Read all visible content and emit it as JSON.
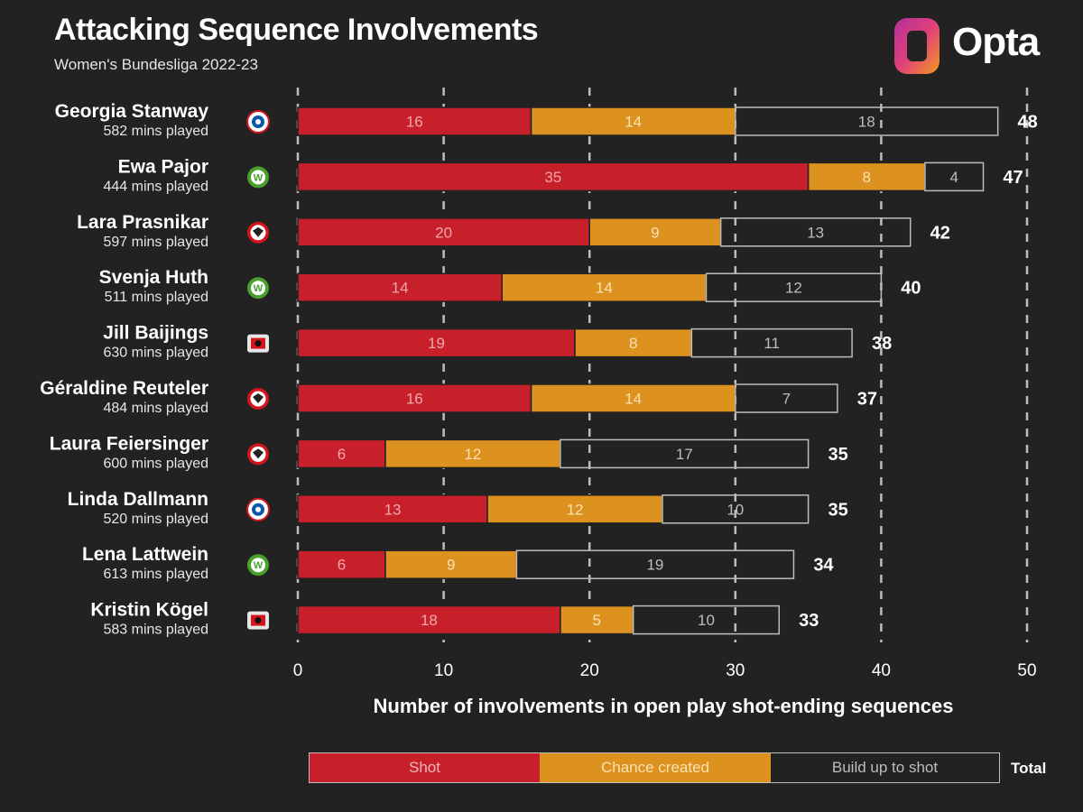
{
  "header": {
    "title": "Attacking Sequence Involvements",
    "subtitle": "Women's Bundesliga 2022-23",
    "brand": "Opta"
  },
  "legend": {
    "shot": "Shot",
    "chance": "Chance created",
    "build": "Build up to shot",
    "total": "Total"
  },
  "colors": {
    "shot": "#c7202b",
    "chance": "#dd911f",
    "build_border": "#bdbdbd",
    "background": "#222222"
  },
  "chart_data": {
    "type": "bar",
    "orientation": "horizontal",
    "stacked": true,
    "title": "Attacking Sequence Involvements",
    "subtitle": "Women's Bundesliga 2022-23",
    "xlabel": "Number of involvements in open play shot-ending sequences",
    "ylabel": "",
    "xlim": [
      0,
      50
    ],
    "xticks": [
      0,
      10,
      20,
      30,
      40,
      50
    ],
    "grid": "vertical dashed",
    "series_names": [
      "Shot",
      "Chance created",
      "Build up to shot"
    ],
    "players": [
      {
        "name": "Georgia Stanway",
        "mins": "582 mins played",
        "club": "Bayern Munich",
        "shot": 16,
        "chance": 14,
        "build": 18,
        "total": 48
      },
      {
        "name": "Ewa Pajor",
        "mins": "444 mins played",
        "club": "Wolfsburg",
        "shot": 35,
        "chance": 8,
        "build": 4,
        "total": 47
      },
      {
        "name": "Lara Prasnikar",
        "mins": "597 mins played",
        "club": "Eintracht Frankfurt",
        "shot": 20,
        "chance": 9,
        "build": 13,
        "total": 42
      },
      {
        "name": "Svenja Huth",
        "mins": "511 mins played",
        "club": "Wolfsburg",
        "shot": 14,
        "chance": 14,
        "build": 12,
        "total": 40
      },
      {
        "name": "Jill Baijings",
        "mins": "630 mins played",
        "club": "Bayer Leverkusen",
        "shot": 19,
        "chance": 8,
        "build": 11,
        "total": 38
      },
      {
        "name": "Géraldine Reuteler",
        "mins": "484 mins played",
        "club": "Eintracht Frankfurt",
        "shot": 16,
        "chance": 14,
        "build": 7,
        "total": 37
      },
      {
        "name": "Laura Feiersinger",
        "mins": "600 mins played",
        "club": "Eintracht Frankfurt",
        "shot": 6,
        "chance": 12,
        "build": 17,
        "total": 35
      },
      {
        "name": "Linda Dallmann",
        "mins": "520 mins played",
        "club": "Bayern Munich",
        "shot": 13,
        "chance": 12,
        "build": 10,
        "total": 35
      },
      {
        "name": "Lena Lattwein",
        "mins": "613 mins played",
        "club": "Wolfsburg",
        "shot": 6,
        "chance": 9,
        "build": 19,
        "total": 34
      },
      {
        "name": "Kristin Kögel",
        "mins": "583 mins played",
        "club": "Bayer Leverkusen",
        "shot": 18,
        "chance": 5,
        "build": 10,
        "total": 33
      }
    ]
  }
}
